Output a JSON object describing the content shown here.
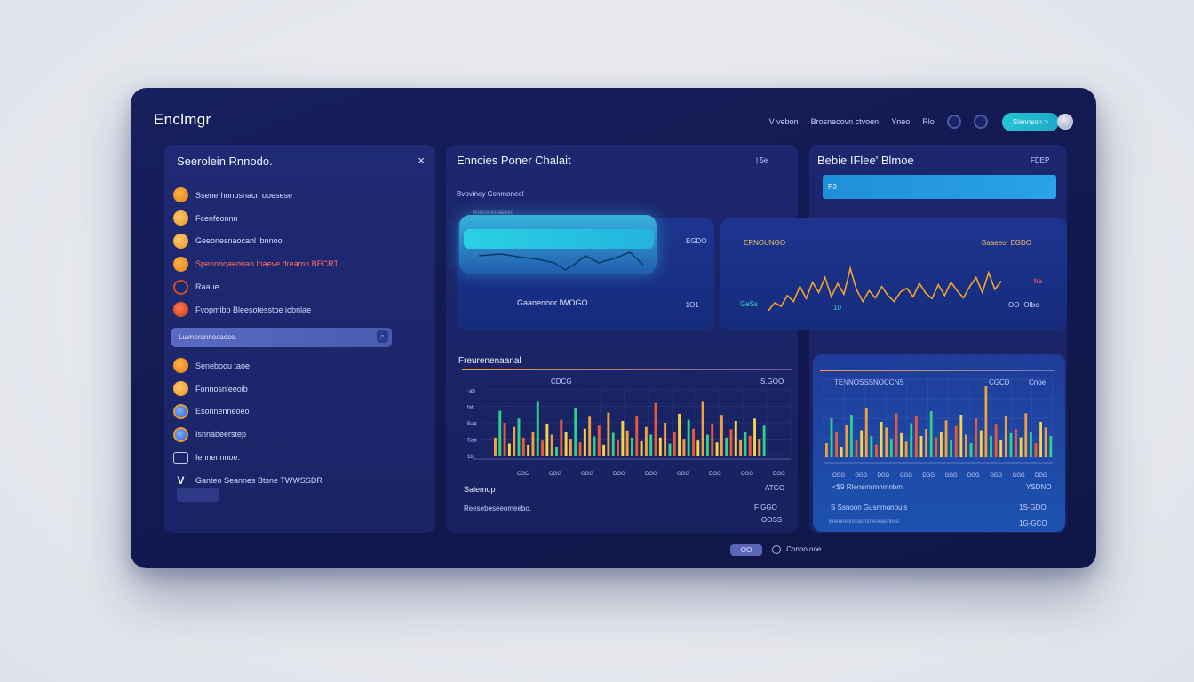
{
  "app": {
    "title": "Enclmgr"
  },
  "top_nav": {
    "link1": "V vebon",
    "link2": "Brosnecovn ctvoen",
    "link3": "Yneo",
    "link4": "Rlo",
    "pill_button": "Slennson >"
  },
  "left_panel": {
    "title": "Seerolein Rnnodo.",
    "close": "×",
    "items": [
      {
        "icon": "orange",
        "label": "Ssenerhonbsnacn ooesese"
      },
      {
        "icon": "orange2",
        "label": "Fcenfeonnn"
      },
      {
        "icon": "orange2",
        "label": "Geeonesnaocanl lbnnoo"
      },
      {
        "icon": "orange",
        "label": "Spennnoaeonan loaeve dreamn BECRT",
        "red": true
      },
      {
        "icon": "ring",
        "label": "Raaue"
      },
      {
        "icon": "red",
        "label": "Fvopmibp Bleesotesstoe iobnlae"
      }
    ],
    "search": {
      "value": "Luvnerannocaoce.",
      "icon": "⌕"
    },
    "items2": [
      {
        "icon": "orange",
        "label": "Seneboou taoe"
      },
      {
        "icon": "orange2",
        "label": "Fonnosn'eeoib"
      },
      {
        "icon": "blue",
        "label": "Esonnenneoeo"
      },
      {
        "icon": "blue",
        "label": "Isnnabeerstep"
      },
      {
        "icon": "sq",
        "label": "Iennennnoe."
      },
      {
        "icon": "check",
        "label": "Ganteo Seannes Btsne TWWSSDR"
      }
    ]
  },
  "center": {
    "title": "Enncies Poner Chalait",
    "title_right": "| 5e",
    "subtitle": "Bvoviney Conmoneel",
    "tiny": "Boesnoes laeseo",
    "card1": {
      "left_label": "Gaanenoor IWOGO",
      "right_top": "EGDO",
      "right_bottom": "·1O1"
    },
    "chart_title": "Freurenenaanal",
    "chart_legend": "CDCG",
    "chart_right": "S.GOO",
    "footer1_left": "Salemop",
    "footer1_right": "ATGO",
    "footer2_left": "Reesebeseeomeebo.",
    "footer2_right": "F GGO",
    "footer3_right": "OOSS"
  },
  "right": {
    "title": "Bebie  IFlee' Blmoe",
    "title_right": "FDEP",
    "progress_label": "P3",
    "progress_value": 0.99,
    "card2": {
      "left_top": "ERNOUNGO",
      "right_top": "Baaeeor EGDO",
      "left_bottom": "GeSs",
      "mid": "10",
      "right_mark": "ha",
      "right_bottom": "OO   ·OIbo"
    },
    "chart_title": "TENNOSSSNOCCNS",
    "chart_legend": "CGCD",
    "chart_right": "Cnoe",
    "footer1_left": "<$9 Rlensmrmnmnbm",
    "footer1_right": "YSDNO",
    "footer2_left": "S Ssnoon Gusnmonouls",
    "footer2_right": "1S-GDO",
    "footer3_left": "Bneoneonrnacrcmeoeaenneo",
    "footer3_right": "1G-GCO"
  },
  "bottom": {
    "page_badge": "OO",
    "label": "Conno ooe"
  },
  "colors": {
    "accent": "#27c4d4",
    "bar_orange": "#f0a040",
    "bar_green": "#2fd08a",
    "bar_red": "#e85a3a",
    "bar_yellow": "#f5d34a",
    "line_orange": "#f5a52a"
  },
  "chart_data": [
    {
      "type": "bar",
      "name": "center-bar-chart",
      "ylim": [
        0,
        110
      ],
      "y_ticks": [
        "·ab",
        "fab",
        "Bab",
        "Sab",
        "1b"
      ],
      "x_ticks": [
        "CGC",
        "OGG",
        "GGG",
        "DGG",
        "DGG",
        "GGG",
        "DGG",
        "OGG",
        "DGG"
      ],
      "series": [
        {
          "values": [
            30,
            75,
            55,
            20,
            48,
            62,
            30,
            18,
            40,
            90,
            25,
            52,
            35,
            15,
            60,
            40,
            28,
            80,
            22,
            45,
            65,
            32,
            50,
            18,
            72,
            38,
            26,
            58,
            42,
            30,
            66,
            24,
            48,
            35,
            88,
            30,
            55,
            20,
            40,
            70,
            28,
            60,
            45,
            25,
            90,
            35,
            52,
            22,
            68,
            30,
            44,
            58,
            26,
            40,
            33,
            62,
            28,
            50
          ]
        }
      ]
    },
    {
      "type": "bar",
      "name": "right-bar-chart",
      "ylim": [
        0,
        110
      ],
      "x_ticks": [
        "OGG",
        "GGG",
        "DGG",
        "GGG",
        "DGG",
        "GGG",
        "DGG",
        "GGG",
        "GGG",
        "DGG"
      ],
      "series": [
        {
          "values": [
            20,
            55,
            35,
            15,
            45,
            60,
            25,
            38,
            70,
            30,
            18,
            50,
            42,
            26,
            62,
            34,
            22,
            48,
            58,
            30,
            40,
            65,
            28,
            36,
            52,
            24,
            44,
            60,
            32,
            20,
            55,
            38,
            100,
            30,
            46,
            25,
            58,
            34,
            40,
            28,
            62,
            35,
            20,
            50,
            42,
            30
          ]
        }
      ]
    },
    {
      "type": "line",
      "name": "right-line-chart",
      "ylim": [
        0,
        100
      ],
      "series": [
        {
          "values": [
            15,
            28,
            22,
            40,
            30,
            55,
            35,
            62,
            45,
            70,
            38,
            60,
            42,
            85,
            50,
            30,
            48,
            36,
            55,
            40,
            30,
            46,
            52,
            38,
            60,
            44,
            35,
            58,
            40,
            62,
            48,
            36,
            55,
            70,
            45,
            78,
            50,
            64
          ]
        }
      ]
    }
  ]
}
